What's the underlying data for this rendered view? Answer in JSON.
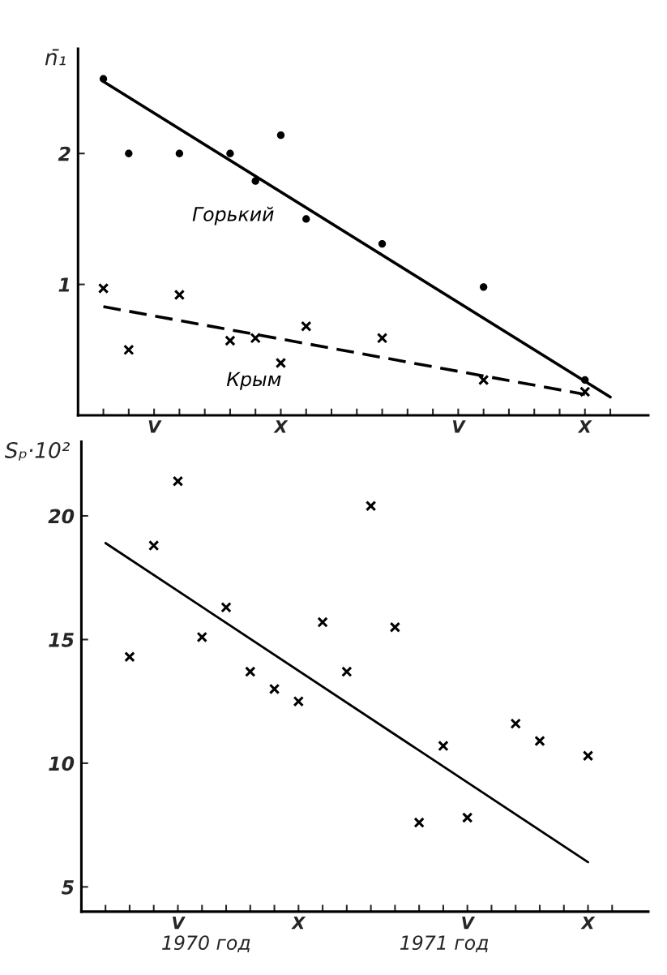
{
  "chart_data": [
    {
      "type": "scatter",
      "ylabel": "n̄₁",
      "ylim": [
        0,
        2.8
      ],
      "yticks": [
        1,
        2
      ],
      "categories": [
        null,
        null,
        "V",
        null,
        null,
        null,
        null,
        "X",
        null,
        null,
        null,
        null,
        null,
        null,
        "V",
        null,
        null,
        null,
        null,
        "X",
        null
      ],
      "grid": false,
      "legend": false,
      "series": [
        {
          "name": "Горький",
          "marker": "circle",
          "color": "#000000",
          "values": [
            2.57,
            2.0,
            null,
            2.0,
            null,
            2.0,
            1.79,
            2.14,
            1.5,
            null,
            null,
            1.31,
            null,
            null,
            null,
            0.98,
            null,
            null,
            null,
            0.27,
            null
          ]
        },
        {
          "type": "line",
          "line_style": "solid",
          "color": "#000000",
          "values": [
            2.55,
            null,
            null,
            null,
            null,
            null,
            null,
            null,
            null,
            null,
            null,
            null,
            null,
            null,
            null,
            null,
            null,
            null,
            null,
            null,
            0.14
          ]
        },
        {
          "name": "Крым",
          "marker": "cross",
          "color": "#000000",
          "values": [
            0.97,
            0.5,
            null,
            0.92,
            null,
            0.57,
            0.59,
            0.4,
            0.68,
            null,
            null,
            0.59,
            null,
            null,
            null,
            0.27,
            null,
            null,
            null,
            0.18,
            null
          ]
        },
        {
          "type": "line",
          "line_style": "dashed",
          "color": "#000000",
          "values": [
            0.83,
            null,
            null,
            null,
            null,
            null,
            null,
            null,
            null,
            null,
            null,
            null,
            null,
            null,
            null,
            null,
            null,
            null,
            null,
            0.16,
            null
          ]
        }
      ]
    },
    {
      "type": "scatter",
      "ylabel": "Sₚ·10²",
      "ylim": [
        4,
        23
      ],
      "yticks": [
        5,
        10,
        15,
        20
      ],
      "categories": [
        null,
        null,
        null,
        "V",
        null,
        null,
        null,
        null,
        "X",
        null,
        null,
        null,
        null,
        null,
        null,
        "V",
        null,
        null,
        null,
        null,
        "X",
        null
      ],
      "grid": false,
      "legend": false,
      "annotations": [
        "1970 год",
        "1971 год"
      ],
      "series": [
        {
          "marker": "cross",
          "color": "#000000",
          "values": [
            null,
            14.3,
            18.8,
            21.4,
            15.1,
            16.3,
            13.7,
            13.0,
            12.5,
            15.7,
            13.7,
            20.4,
            15.5,
            7.6,
            10.7,
            7.8,
            null,
            11.6,
            10.9,
            null,
            10.3,
            null
          ]
        },
        {
          "type": "line",
          "line_style": "solid",
          "color": "#000000",
          "values": [
            18.9,
            null,
            null,
            null,
            null,
            null,
            null,
            null,
            null,
            null,
            null,
            null,
            null,
            null,
            null,
            null,
            null,
            null,
            null,
            null,
            6.0,
            null
          ]
        }
      ]
    }
  ]
}
